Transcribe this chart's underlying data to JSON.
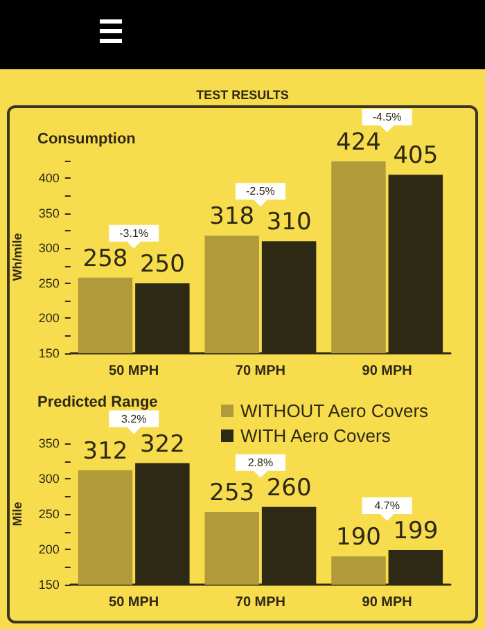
{
  "chart_data": [
    {
      "type": "bar",
      "title": "TEST RESULTS",
      "subtitle": "Consumption",
      "ylabel": "Wh/mile",
      "categories": [
        "50 MPH",
        "70 MPH",
        "90 MPH"
      ],
      "series": [
        {
          "color": "#b09a3a",
          "values": [
            258,
            318,
            424
          ]
        },
        {
          "color": "#2e2914",
          "values": [
            250,
            310,
            405
          ]
        }
      ],
      "ylim": [
        150,
        425
      ],
      "yticks": [
        150,
        {
          "value": 175,
          "label": null
        },
        200,
        {
          "value": 225,
          "label": null
        },
        250,
        {
          "value": 275,
          "label": null
        },
        300,
        {
          "value": 325,
          "label": null
        },
        350,
        {
          "value": 375,
          "label": null
        },
        400,
        {
          "value": 425,
          "label": null
        }
      ],
      "data_labels": true,
      "grid": false,
      "legend": false,
      "annotations": [
        "-3.1%",
        "-2.5%",
        "-4.5%"
      ]
    },
    {
      "type": "bar",
      "title": "Predicted Range",
      "ylabel": "Mile",
      "categories": [
        "50 MPH",
        "70 MPH",
        "90 MPH"
      ],
      "series": [
        {
          "name": "WITHOUT Aero Covers",
          "color": "#b09a3a",
          "values": [
            312,
            253,
            190
          ]
        },
        {
          "name": "WITH Aero Covers",
          "color": "#2e2914",
          "values": [
            322,
            260,
            199
          ]
        }
      ],
      "ylim": [
        150,
        350
      ],
      "yticks": [
        150,
        {
          "value": 175,
          "label": null
        },
        200,
        {
          "value": 225,
          "label": null
        },
        250,
        {
          "value": 275,
          "label": null
        },
        300,
        {
          "value": 325,
          "label": null
        },
        350
      ],
      "data_labels": true,
      "grid": false,
      "legend": "top right",
      "annotations": [
        "3.2%",
        "2.8%",
        "4.7%"
      ]
    }
  ]
}
